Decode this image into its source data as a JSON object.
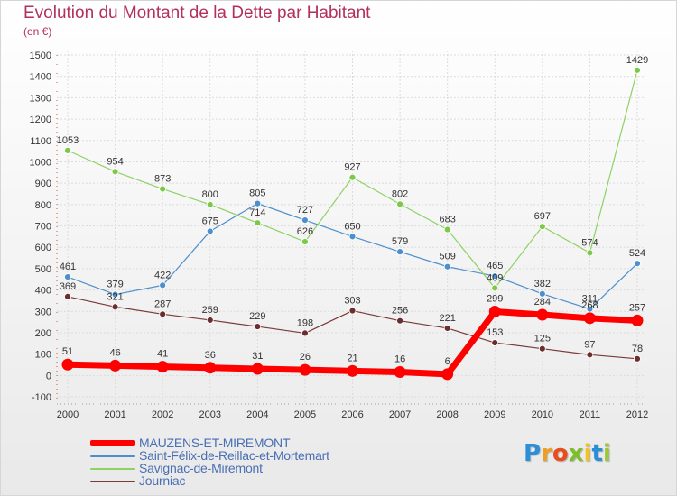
{
  "title": "Evolution du Montant de la Dette par Habitant",
  "subtitle": "(en €)",
  "logo": {
    "letters": [
      "P",
      "r",
      "o",
      "x",
      "i",
      "t",
      "i"
    ],
    "colors": [
      "#2a8fd6",
      "#f0a020",
      "#e94d1c",
      "#7bbf2a",
      "#f6c21f",
      "#2a8fd6",
      "#9bc93a"
    ]
  },
  "chart_data": {
    "type": "line",
    "x": [
      "2000",
      "2001",
      "2002",
      "2003",
      "2004",
      "2005",
      "2006",
      "2007",
      "2008",
      "2009",
      "2010",
      "2011",
      "2012"
    ],
    "ylim": [
      -100,
      1500
    ],
    "yticks": [
      "-100",
      "0",
      "100",
      "200",
      "300",
      "400",
      "500",
      "600",
      "700",
      "800",
      "900",
      "1000",
      "1100",
      "1200",
      "1300",
      "1400",
      "1500"
    ],
    "grid": true,
    "legend_position": "bottom-left",
    "series": [
      {
        "name": "Saint-Félix-de-Reillac-et-Mortemart",
        "color": "#4d8fcc",
        "marker": "#4d8fcc",
        "values": [
          461,
          379,
          422,
          675,
          805,
          727,
          650,
          579,
          509,
          465,
          382,
          311,
          524
        ],
        "labels": [
          "461",
          "379",
          "422",
          "675",
          "805",
          "727",
          "650",
          "579",
          "509",
          "465",
          "382",
          "311",
          "524"
        ]
      },
      {
        "name": "Savignac-de-Miremont",
        "color": "#8ed165",
        "marker": "#7cc94a",
        "values": [
          1053,
          954,
          873,
          800,
          714,
          626,
          927,
          802,
          683,
          409,
          697,
          574,
          1429
        ],
        "labels": [
          "1053",
          "954",
          "873",
          "800",
          "714",
          "626",
          "927",
          "802",
          "683",
          "409",
          "697",
          "574",
          "1429"
        ]
      },
      {
        "name": "Journiac",
        "color": "#7a3a3a",
        "marker": "#6b2e2e",
        "values": [
          369,
          321,
          287,
          259,
          229,
          198,
          303,
          256,
          221,
          153,
          125,
          97,
          78
        ],
        "labels": [
          "369",
          "321",
          "287",
          "259",
          "229",
          "198",
          "303",
          "256",
          "221",
          "153",
          "125",
          "97",
          "78"
        ]
      },
      {
        "name": "MAUZENS-ET-MIREMONT",
        "color": "#ff0000",
        "marker": "#ff0000",
        "values": [
          51,
          46,
          41,
          36,
          31,
          26,
          21,
          16,
          6,
          299,
          284,
          268,
          257
        ],
        "labels": [
          "51",
          "46",
          "41",
          "36",
          "31",
          "26",
          "21",
          "16",
          "6",
          "299",
          "284",
          "268",
          "257"
        ]
      }
    ]
  },
  "legend": [
    {
      "name": "MAUZENS-ET-MIREMONT",
      "color": "#ff0000"
    },
    {
      "name": "Saint-Félix-de-Reillac-et-Mortemart",
      "color": "#4d8fcc"
    },
    {
      "name": "Savignac-de-Miremont",
      "color": "#8ed165"
    },
    {
      "name": "Journiac",
      "color": "#7a3a3a"
    }
  ]
}
